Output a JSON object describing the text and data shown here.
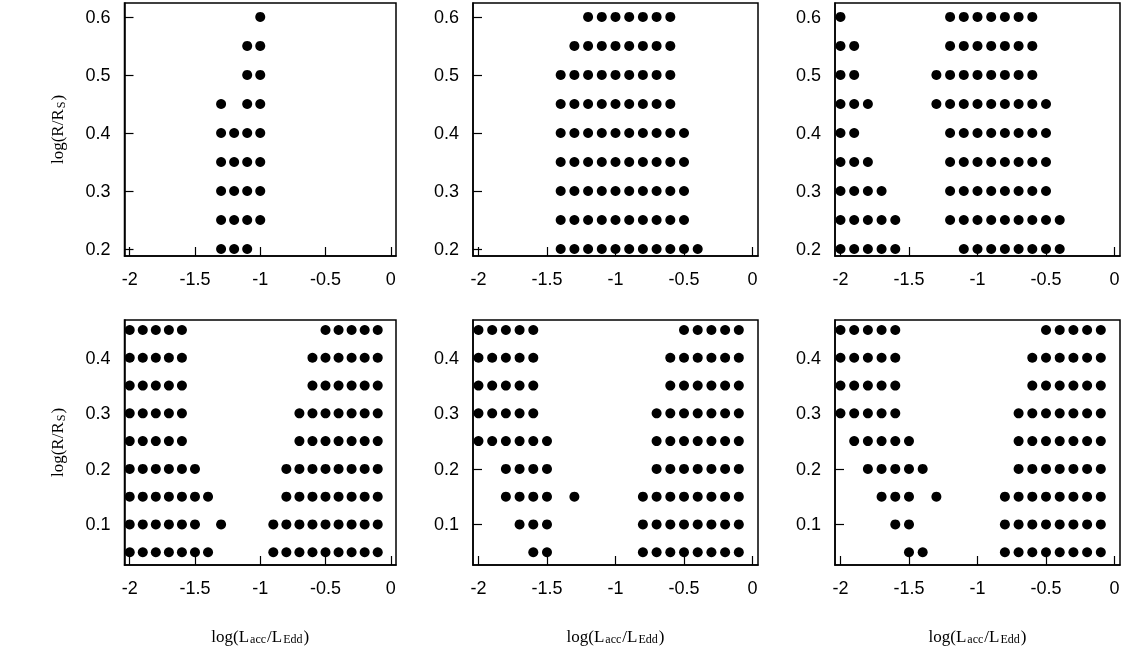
{
  "chart_data": [
    {
      "type": "scatter",
      "ylabel": "log(R/R$_{S}$)",
      "marker": "circle",
      "color": "#000000",
      "xlim": [
        -2.04,
        0.04
      ],
      "ylim": [
        0.188,
        0.624
      ],
      "xticks": [
        -2,
        -1.5,
        -1,
        -0.5,
        0
      ],
      "yticks": [
        0.2,
        0.3,
        0.4,
        0.5,
        0.6
      ],
      "x": [
        -1,
        -1.1,
        -1,
        -1.1,
        -1,
        -1.3,
        -1.1,
        -1,
        -1.3,
        -1.2,
        -1.1,
        -1,
        -1.3,
        -1.2,
        -1.1,
        -1,
        -1.3,
        -1.2,
        -1.1,
        -1,
        -1.3,
        -1.2,
        -1.1,
        -1,
        -1.3,
        -1.2,
        -1.1
      ],
      "values": [
        0.6,
        0.55,
        0.55,
        0.5,
        0.5,
        0.45,
        0.45,
        0.45,
        0.4,
        0.4,
        0.4,
        0.4,
        0.35,
        0.35,
        0.35,
        0.35,
        0.3,
        0.3,
        0.3,
        0.3,
        0.25,
        0.25,
        0.25,
        0.25,
        0.2,
        0.2,
        0.2
      ]
    },
    {
      "type": "scatter",
      "marker": "circle",
      "color": "#000000",
      "xlim": [
        -2.04,
        0.04
      ],
      "ylim": [
        0.188,
        0.624
      ],
      "xticks": [
        -2,
        -1.5,
        -1,
        -0.5,
        0
      ],
      "yticks": [
        0.2,
        0.3,
        0.4,
        0.5,
        0.6
      ],
      "x": [
        -1.2,
        -1.1,
        -1,
        -0.9,
        -0.8,
        -0.7,
        -0.6,
        -1.3,
        -1.2,
        -1.1,
        -1,
        -0.9,
        -0.8,
        -0.7,
        -0.6,
        -1.4,
        -1.3,
        -1.2,
        -1.1,
        -1,
        -0.9,
        -0.8,
        -0.7,
        -0.6,
        -1.4,
        -1.3,
        -1.2,
        -1.1,
        -1,
        -0.9,
        -0.8,
        -0.7,
        -0.6,
        -1.4,
        -1.3,
        -1.2,
        -1.1,
        -1,
        -0.9,
        -0.8,
        -0.7,
        -0.6,
        -0.5,
        -1.4,
        -1.3,
        -1.2,
        -1.1,
        -1,
        -0.9,
        -0.8,
        -0.7,
        -0.6,
        -0.5,
        -1.4,
        -1.3,
        -1.2,
        -1.1,
        -1,
        -0.9,
        -0.8,
        -0.7,
        -0.6,
        -0.5,
        -1.4,
        -1.3,
        -1.2,
        -1.1,
        -1,
        -0.9,
        -0.8,
        -0.7,
        -0.6,
        -0.5,
        -1.4,
        -1.3,
        -1.2,
        -1.1,
        -1,
        -0.9,
        -0.8,
        -0.7,
        -0.6,
        -0.5,
        -0.4
      ],
      "values": [
        0.6,
        0.6,
        0.6,
        0.6,
        0.6,
        0.6,
        0.6,
        0.55,
        0.55,
        0.55,
        0.55,
        0.55,
        0.55,
        0.55,
        0.55,
        0.5,
        0.5,
        0.5,
        0.5,
        0.5,
        0.5,
        0.5,
        0.5,
        0.5,
        0.45,
        0.45,
        0.45,
        0.45,
        0.45,
        0.45,
        0.45,
        0.45,
        0.45,
        0.4,
        0.4,
        0.4,
        0.4,
        0.4,
        0.4,
        0.4,
        0.4,
        0.4,
        0.4,
        0.35,
        0.35,
        0.35,
        0.35,
        0.35,
        0.35,
        0.35,
        0.35,
        0.35,
        0.35,
        0.3,
        0.3,
        0.3,
        0.3,
        0.3,
        0.3,
        0.3,
        0.3,
        0.3,
        0.3,
        0.25,
        0.25,
        0.25,
        0.25,
        0.25,
        0.25,
        0.25,
        0.25,
        0.25,
        0.25,
        0.2,
        0.2,
        0.2,
        0.2,
        0.2,
        0.2,
        0.2,
        0.2,
        0.2,
        0.2,
        0.2
      ]
    },
    {
      "type": "scatter",
      "marker": "circle",
      "color": "#000000",
      "xlim": [
        -2.04,
        0.04
      ],
      "ylim": [
        0.188,
        0.624
      ],
      "xticks": [
        -2,
        -1.5,
        -1,
        -0.5,
        0
      ],
      "yticks": [
        0.2,
        0.3,
        0.4,
        0.5,
        0.6
      ],
      "x": [
        -2,
        -1.2,
        -1.1,
        -1,
        -0.9,
        -0.8,
        -0.7,
        -0.6,
        -2,
        -1.9,
        -1.2,
        -1.1,
        -1,
        -0.9,
        -0.8,
        -0.7,
        -0.6,
        -2,
        -1.9,
        -1.3,
        -1.2,
        -1.1,
        -1,
        -0.9,
        -0.8,
        -0.7,
        -0.6,
        -2,
        -1.9,
        -1.8,
        -1.3,
        -1.2,
        -1.1,
        -1,
        -0.9,
        -0.8,
        -0.7,
        -0.6,
        -0.5,
        -2,
        -1.9,
        -1.2,
        -1.1,
        -1,
        -0.9,
        -0.8,
        -0.7,
        -0.6,
        -0.5,
        -2,
        -1.9,
        -1.8,
        -1.2,
        -1.1,
        -1,
        -0.9,
        -0.8,
        -0.7,
        -0.6,
        -0.5,
        -2,
        -1.9,
        -1.8,
        -1.7,
        -1.2,
        -1.1,
        -1,
        -0.9,
        -0.8,
        -0.7,
        -0.6,
        -0.5,
        -2,
        -1.9,
        -1.8,
        -1.7,
        -1.6,
        -1.2,
        -1.1,
        -1,
        -0.9,
        -0.8,
        -0.7,
        -0.6,
        -0.5,
        -0.4,
        -2,
        -1.9,
        -1.8,
        -1.7,
        -1.6,
        -1.1,
        -1,
        -0.9,
        -0.8,
        -0.7,
        -0.6,
        -0.5,
        -0.4
      ],
      "values": [
        0.6,
        0.6,
        0.6,
        0.6,
        0.6,
        0.6,
        0.6,
        0.6,
        0.55,
        0.55,
        0.55,
        0.55,
        0.55,
        0.55,
        0.55,
        0.55,
        0.55,
        0.5,
        0.5,
        0.5,
        0.5,
        0.5,
        0.5,
        0.5,
        0.5,
        0.5,
        0.5,
        0.45,
        0.45,
        0.45,
        0.45,
        0.45,
        0.45,
        0.45,
        0.45,
        0.45,
        0.45,
        0.45,
        0.45,
        0.4,
        0.4,
        0.4,
        0.4,
        0.4,
        0.4,
        0.4,
        0.4,
        0.4,
        0.4,
        0.35,
        0.35,
        0.35,
        0.35,
        0.35,
        0.35,
        0.35,
        0.35,
        0.35,
        0.35,
        0.35,
        0.3,
        0.3,
        0.3,
        0.3,
        0.3,
        0.3,
        0.3,
        0.3,
        0.3,
        0.3,
        0.3,
        0.3,
        0.25,
        0.25,
        0.25,
        0.25,
        0.25,
        0.25,
        0.25,
        0.25,
        0.25,
        0.25,
        0.25,
        0.25,
        0.25,
        0.25,
        0.2,
        0.2,
        0.2,
        0.2,
        0.2,
        0.2,
        0.2,
        0.2,
        0.2,
        0.2,
        0.2,
        0.2,
        0.2
      ]
    },
    {
      "type": "scatter",
      "xlabel": "log(L$_{acc}$/L$_{Edd}$)",
      "ylabel": "log(R/R$_{S}$)",
      "marker": "circle",
      "color": "#000000",
      "xlim": [
        -2.04,
        0.04
      ],
      "ylim": [
        0.027,
        0.468
      ],
      "xticks": [
        -2,
        -1.5,
        -1,
        -0.5,
        0
      ],
      "yticks": [
        0.1,
        0.2,
        0.3,
        0.4
      ],
      "x": [
        -2,
        -1.9,
        -1.8,
        -1.7,
        -1.6,
        -0.5,
        -0.4,
        -0.3,
        -0.2,
        -0.1,
        -2,
        -1.9,
        -1.8,
        -1.7,
        -1.6,
        -0.6,
        -0.5,
        -0.4,
        -0.3,
        -0.2,
        -0.1,
        -2,
        -1.9,
        -1.8,
        -1.7,
        -1.6,
        -0.6,
        -0.5,
        -0.4,
        -0.3,
        -0.2,
        -0.1,
        -2,
        -1.9,
        -1.8,
        -1.7,
        -1.6,
        -0.7,
        -0.6,
        -0.5,
        -0.4,
        -0.3,
        -0.2,
        -0.1,
        -2,
        -1.9,
        -1.8,
        -1.7,
        -1.6,
        -0.7,
        -0.6,
        -0.5,
        -0.4,
        -0.3,
        -0.2,
        -0.1,
        -2,
        -1.9,
        -1.8,
        -1.7,
        -1.6,
        -1.5,
        -0.8,
        -0.7,
        -0.6,
        -0.5,
        -0.4,
        -0.3,
        -0.2,
        -0.1,
        -2,
        -1.9,
        -1.8,
        -1.7,
        -1.6,
        -1.5,
        -1.4,
        -0.8,
        -0.7,
        -0.6,
        -0.5,
        -0.4,
        -0.3,
        -0.2,
        -0.1,
        -2,
        -1.9,
        -1.8,
        -1.7,
        -1.6,
        -1.5,
        -1.3,
        -0.9,
        -0.8,
        -0.7,
        -0.6,
        -0.5,
        -0.4,
        -0.3,
        -0.2,
        -0.1,
        -2,
        -1.9,
        -1.8,
        -1.7,
        -1.6,
        -1.5,
        -1.4,
        -0.9,
        -0.8,
        -0.7,
        -0.6,
        -0.5,
        -0.4,
        -0.3,
        -0.2,
        -0.1
      ],
      "values": [
        0.45,
        0.45,
        0.45,
        0.45,
        0.45,
        0.45,
        0.45,
        0.45,
        0.45,
        0.45,
        0.4,
        0.4,
        0.4,
        0.4,
        0.4,
        0.4,
        0.4,
        0.4,
        0.4,
        0.4,
        0.4,
        0.35,
        0.35,
        0.35,
        0.35,
        0.35,
        0.35,
        0.35,
        0.35,
        0.35,
        0.35,
        0.35,
        0.3,
        0.3,
        0.3,
        0.3,
        0.3,
        0.3,
        0.3,
        0.3,
        0.3,
        0.3,
        0.3,
        0.3,
        0.25,
        0.25,
        0.25,
        0.25,
        0.25,
        0.25,
        0.25,
        0.25,
        0.25,
        0.25,
        0.25,
        0.25,
        0.2,
        0.2,
        0.2,
        0.2,
        0.2,
        0.2,
        0.2,
        0.2,
        0.2,
        0.2,
        0.2,
        0.2,
        0.2,
        0.2,
        0.15,
        0.15,
        0.15,
        0.15,
        0.15,
        0.15,
        0.15,
        0.15,
        0.15,
        0.15,
        0.15,
        0.15,
        0.15,
        0.15,
        0.15,
        0.1,
        0.1,
        0.1,
        0.1,
        0.1,
        0.1,
        0.1,
        0.1,
        0.1,
        0.1,
        0.1,
        0.1,
        0.1,
        0.1,
        0.1,
        0.1,
        0.05,
        0.05,
        0.05,
        0.05,
        0.05,
        0.05,
        0.05,
        0.05,
        0.05,
        0.05,
        0.05,
        0.05,
        0.05,
        0.05,
        0.05,
        0.05
      ]
    },
    {
      "type": "scatter",
      "xlabel": "log(L$_{acc}$/L$_{Edd}$)",
      "marker": "circle",
      "color": "#000000",
      "xlim": [
        -2.04,
        0.04
      ],
      "ylim": [
        0.027,
        0.468
      ],
      "xticks": [
        -2,
        -1.5,
        -1,
        -0.5,
        0
      ],
      "yticks": [
        0.1,
        0.2,
        0.3,
        0.4
      ],
      "x": [
        -2,
        -1.9,
        -1.8,
        -1.7,
        -1.6,
        -0.5,
        -0.4,
        -0.3,
        -0.2,
        -0.1,
        -2,
        -1.9,
        -1.8,
        -1.7,
        -1.6,
        -0.6,
        -0.5,
        -0.4,
        -0.3,
        -0.2,
        -0.1,
        -2,
        -1.9,
        -1.8,
        -1.7,
        -1.6,
        -0.6,
        -0.5,
        -0.4,
        -0.3,
        -0.2,
        -0.1,
        -2,
        -1.9,
        -1.8,
        -1.7,
        -1.6,
        -0.7,
        -0.6,
        -0.5,
        -0.4,
        -0.3,
        -0.2,
        -0.1,
        -2,
        -1.9,
        -1.8,
        -1.7,
        -1.6,
        -1.5,
        -0.7,
        -0.6,
        -0.5,
        -0.4,
        -0.3,
        -0.2,
        -0.1,
        -1.8,
        -1.7,
        -1.6,
        -1.5,
        -0.7,
        -0.6,
        -0.5,
        -0.4,
        -0.3,
        -0.2,
        -0.1,
        -1.8,
        -1.7,
        -1.6,
        -1.5,
        -1.3,
        -0.8,
        -0.7,
        -0.6,
        -0.5,
        -0.4,
        -0.3,
        -0.2,
        -0.1,
        -1.7,
        -1.6,
        -1.5,
        -0.8,
        -0.7,
        -0.6,
        -0.5,
        -0.4,
        -0.3,
        -0.2,
        -0.1,
        -1.6,
        -1.5,
        -0.8,
        -0.7,
        -0.6,
        -0.5,
        -0.4,
        -0.3,
        -0.2,
        -0.1
      ],
      "values": [
        0.45,
        0.45,
        0.45,
        0.45,
        0.45,
        0.45,
        0.45,
        0.45,
        0.45,
        0.45,
        0.4,
        0.4,
        0.4,
        0.4,
        0.4,
        0.4,
        0.4,
        0.4,
        0.4,
        0.4,
        0.4,
        0.35,
        0.35,
        0.35,
        0.35,
        0.35,
        0.35,
        0.35,
        0.35,
        0.35,
        0.35,
        0.35,
        0.3,
        0.3,
        0.3,
        0.3,
        0.3,
        0.3,
        0.3,
        0.3,
        0.3,
        0.3,
        0.3,
        0.3,
        0.25,
        0.25,
        0.25,
        0.25,
        0.25,
        0.25,
        0.25,
        0.25,
        0.25,
        0.25,
        0.25,
        0.25,
        0.25,
        0.2,
        0.2,
        0.2,
        0.2,
        0.2,
        0.2,
        0.2,
        0.2,
        0.2,
        0.2,
        0.2,
        0.15,
        0.15,
        0.15,
        0.15,
        0.15,
        0.15,
        0.15,
        0.15,
        0.15,
        0.15,
        0.15,
        0.15,
        0.15,
        0.1,
        0.1,
        0.1,
        0.1,
        0.1,
        0.1,
        0.1,
        0.1,
        0.1,
        0.1,
        0.1,
        0.05,
        0.05,
        0.05,
        0.05,
        0.05,
        0.05,
        0.05,
        0.05,
        0.05,
        0.05
      ]
    },
    {
      "type": "scatter",
      "xlabel": "log(L$_{acc}$/L$_{Edd}$)",
      "marker": "circle",
      "color": "#000000",
      "xlim": [
        -2.04,
        0.04
      ],
      "ylim": [
        0.027,
        0.468
      ],
      "xticks": [
        -2,
        -1.5,
        -1,
        -0.5,
        0
      ],
      "yticks": [
        0.1,
        0.2,
        0.3,
        0.4
      ],
      "x": [
        -2,
        -1.9,
        -1.8,
        -1.7,
        -1.6,
        -0.5,
        -0.4,
        -0.3,
        -0.2,
        -0.1,
        -2,
        -1.9,
        -1.8,
        -1.7,
        -1.6,
        -0.6,
        -0.5,
        -0.4,
        -0.3,
        -0.2,
        -0.1,
        -2,
        -1.9,
        -1.8,
        -1.7,
        -1.6,
        -0.6,
        -0.5,
        -0.4,
        -0.3,
        -0.2,
        -0.1,
        -2,
        -1.9,
        -1.8,
        -1.7,
        -1.6,
        -0.7,
        -0.6,
        -0.5,
        -0.4,
        -0.3,
        -0.2,
        -0.1,
        -1.9,
        -1.8,
        -1.7,
        -1.6,
        -1.5,
        -0.7,
        -0.6,
        -0.5,
        -0.4,
        -0.3,
        -0.2,
        -0.1,
        -1.8,
        -1.7,
        -1.6,
        -1.5,
        -1.4,
        -0.7,
        -0.6,
        -0.5,
        -0.4,
        -0.3,
        -0.2,
        -0.1,
        -1.7,
        -1.6,
        -1.5,
        -1.3,
        -0.8,
        -0.7,
        -0.6,
        -0.5,
        -0.4,
        -0.3,
        -0.2,
        -0.1,
        -1.6,
        -1.5,
        -0.8,
        -0.7,
        -0.6,
        -0.5,
        -0.4,
        -0.3,
        -0.2,
        -0.1,
        -1.5,
        -1.4,
        -0.8,
        -0.7,
        -0.6,
        -0.5,
        -0.4,
        -0.3,
        -0.2,
        -0.1
      ],
      "values": [
        0.45,
        0.45,
        0.45,
        0.45,
        0.45,
        0.45,
        0.45,
        0.45,
        0.45,
        0.45,
        0.4,
        0.4,
        0.4,
        0.4,
        0.4,
        0.4,
        0.4,
        0.4,
        0.4,
        0.4,
        0.4,
        0.35,
        0.35,
        0.35,
        0.35,
        0.35,
        0.35,
        0.35,
        0.35,
        0.35,
        0.35,
        0.35,
        0.3,
        0.3,
        0.3,
        0.3,
        0.3,
        0.3,
        0.3,
        0.3,
        0.3,
        0.3,
        0.3,
        0.3,
        0.25,
        0.25,
        0.25,
        0.25,
        0.25,
        0.25,
        0.25,
        0.25,
        0.25,
        0.25,
        0.25,
        0.25,
        0.2,
        0.2,
        0.2,
        0.2,
        0.2,
        0.2,
        0.2,
        0.2,
        0.2,
        0.2,
        0.2,
        0.2,
        0.15,
        0.15,
        0.15,
        0.15,
        0.15,
        0.15,
        0.15,
        0.15,
        0.15,
        0.15,
        0.15,
        0.15,
        0.1,
        0.1,
        0.1,
        0.1,
        0.1,
        0.1,
        0.1,
        0.1,
        0.1,
        0.1,
        0.05,
        0.05,
        0.05,
        0.05,
        0.05,
        0.05,
        0.05,
        0.05,
        0.05,
        0.05
      ]
    }
  ]
}
